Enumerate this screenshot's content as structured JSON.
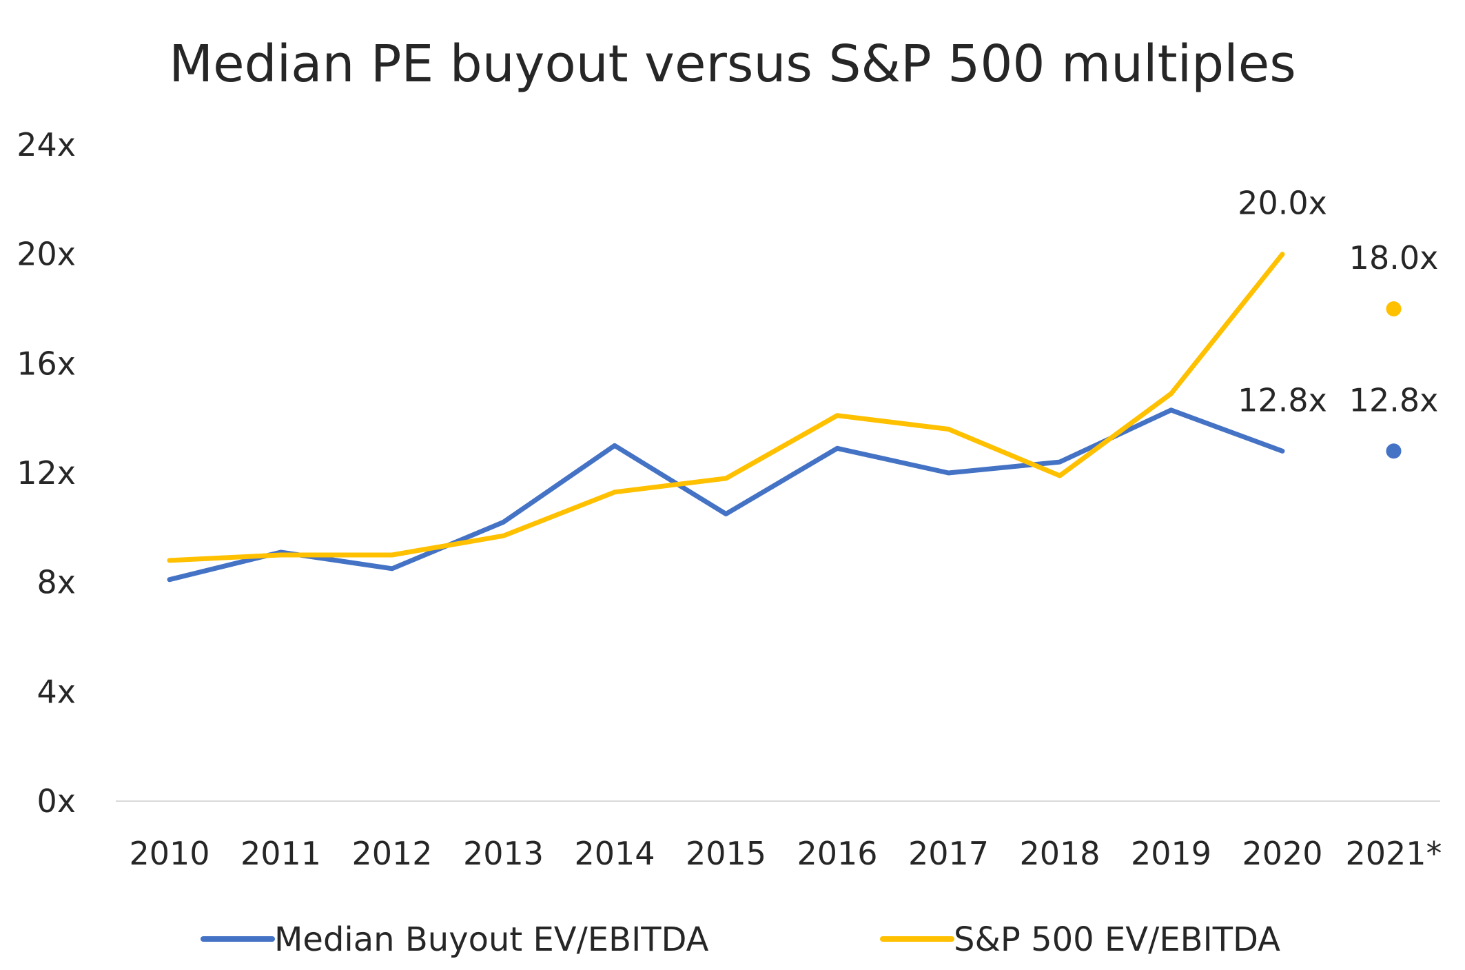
{
  "chart_data": {
    "type": "line",
    "title": "Median PE buyout versus S&P 500 multiples",
    "xlabel": "",
    "ylabel": "",
    "categories": [
      "2010",
      "2011",
      "2012",
      "2013",
      "2014",
      "2015",
      "2016",
      "2017",
      "2018",
      "2019",
      "2020",
      "2021*"
    ],
    "y_ticks": [
      "0x",
      "4x",
      "8x",
      "12x",
      "16x",
      "20x",
      "24x"
    ],
    "ylim": [
      0,
      24
    ],
    "grid": false,
    "legend_position": "bottom",
    "series": [
      {
        "name": "Median Buyout EV/EBITDA",
        "color": "#4472C4",
        "values": [
          8.1,
          9.1,
          8.5,
          10.2,
          13.0,
          10.5,
          12.9,
          12.0,
          12.4,
          14.3,
          12.8,
          12.8
        ],
        "line_points": 11,
        "point_only_from_index": 11
      },
      {
        "name": "S&P 500 EV/EBITDA",
        "color": "#FFC000",
        "values": [
          8.8,
          9.0,
          9.0,
          9.7,
          11.3,
          11.8,
          14.1,
          13.6,
          11.9,
          14.9,
          20.0,
          18.0
        ],
        "line_points": 11,
        "point_only_from_index": 11
      }
    ],
    "annotations": [
      {
        "text": "20.0x",
        "series": 1,
        "index": 10,
        "where": "above"
      },
      {
        "text": "18.0x",
        "series": 1,
        "index": 11,
        "where": "above"
      },
      {
        "text": "12.8x",
        "series": 0,
        "index": 10,
        "where": "above"
      },
      {
        "text": "12.8x",
        "series": 0,
        "index": 11,
        "where": "above"
      }
    ]
  }
}
